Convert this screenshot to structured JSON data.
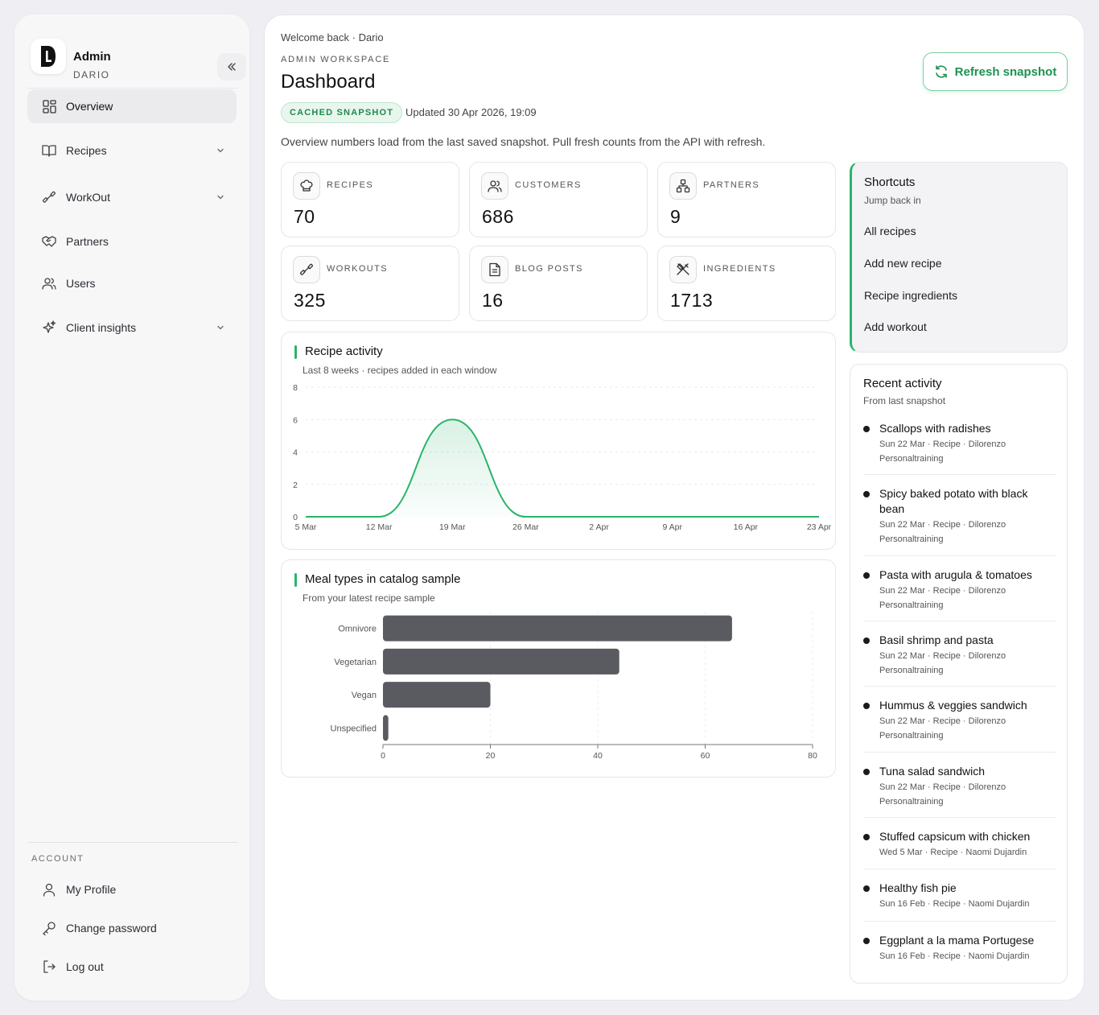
{
  "sidebar": {
    "brand": {
      "name": "Admin",
      "sub": "DARIO"
    },
    "nav": [
      {
        "label": "Overview",
        "icon": "grid-icon",
        "active": true
      },
      {
        "label": "Recipes",
        "icon": "book-icon",
        "chevron": true
      },
      {
        "label": "WorkOut",
        "icon": "dumbbell-icon",
        "chevron": true
      },
      {
        "label": "Partners",
        "icon": "handshake-icon"
      },
      {
        "label": "Users",
        "icon": "users-icon"
      },
      {
        "label": "Client insights",
        "icon": "sparkles-icon",
        "chevron": true
      }
    ],
    "account_label": "ACCOUNT",
    "account": [
      {
        "label": "My Profile",
        "icon": "user-icon"
      },
      {
        "label": "Change password",
        "icon": "key-icon"
      },
      {
        "label": "Log out",
        "icon": "logout-icon"
      }
    ]
  },
  "header": {
    "welcome": "Welcome back · Dario",
    "workspace": "ADMIN WORKSPACE",
    "title": "Dashboard",
    "badge": "CACHED SNAPSHOT",
    "updated": "Updated 30 Apr 2026, 19:09",
    "intro": "Overview numbers load from the last saved snapshot. Pull fresh counts from the API with refresh.",
    "refresh_label": "Refresh snapshot"
  },
  "stats": [
    {
      "label": "RECIPES",
      "value": "70",
      "icon": "chef-hat-icon"
    },
    {
      "label": "CUSTOMERS",
      "value": "686",
      "icon": "users-icon"
    },
    {
      "label": "PARTNERS",
      "value": "9",
      "icon": "network-icon"
    },
    {
      "label": "WORKOUTS",
      "value": "325",
      "icon": "dumbbell-icon"
    },
    {
      "label": "BLOG POSTS",
      "value": "16",
      "icon": "document-icon"
    },
    {
      "label": "INGREDIENTS",
      "value": "1713",
      "icon": "utensils-crossed-icon"
    }
  ],
  "recipe_activity": {
    "title": "Recipe activity",
    "subtitle": "Last 8 weeks · recipes added in each window"
  },
  "meal_types": {
    "title": "Meal types in catalog sample",
    "subtitle": "From your latest recipe sample"
  },
  "chart_data": [
    {
      "type": "area",
      "title": "Recipe activity",
      "x": [
        "5 Mar",
        "12 Mar",
        "19 Mar",
        "26 Mar",
        "2 Apr",
        "9 Apr",
        "16 Apr",
        "23 Apr"
      ],
      "values": [
        0,
        0,
        6,
        0,
        0,
        0,
        0,
        0
      ],
      "ylim": [
        0,
        8
      ],
      "yticks": [
        0,
        2,
        4,
        6,
        8
      ],
      "grid": true,
      "color": "#2bb36b"
    },
    {
      "type": "bar",
      "orientation": "horizontal",
      "title": "Meal types in catalog sample",
      "categories": [
        "Omnivore",
        "Vegetarian",
        "Vegan",
        "Unspecified"
      ],
      "values": [
        65,
        44,
        20,
        1
      ],
      "xlim": [
        0,
        80
      ],
      "xticks": [
        0,
        20,
        40,
        60,
        80
      ],
      "grid": true,
      "color": "#5a5a61"
    }
  ],
  "shortcuts": {
    "title": "Shortcuts",
    "subtitle": "Jump back in",
    "links": [
      "All recipes",
      "Add new recipe",
      "Recipe ingredients",
      "Add workout"
    ]
  },
  "recent": {
    "title": "Recent activity",
    "subtitle": "From last snapshot",
    "items": [
      {
        "title": "Scallops with radishes",
        "meta": "Sun 22 Mar · Recipe · Dilorenzo Personaltraining"
      },
      {
        "title": "Spicy baked potato with black bean",
        "meta": "Sun 22 Mar · Recipe · Dilorenzo Personaltraining"
      },
      {
        "title": "Pasta with arugula & tomatoes",
        "meta": "Sun 22 Mar · Recipe · Dilorenzo Personaltraining"
      },
      {
        "title": "Basil shrimp and pasta",
        "meta": "Sun 22 Mar · Recipe · Dilorenzo Personaltraining"
      },
      {
        "title": "Hummus & veggies sandwich",
        "meta": "Sun 22 Mar · Recipe · Dilorenzo Personaltraining"
      },
      {
        "title": "Tuna salad sandwich",
        "meta": "Sun 22 Mar · Recipe · Dilorenzo Personaltraining"
      },
      {
        "title": "Stuffed capsicum with chicken",
        "meta": "Wed 5 Mar · Recipe · Naomi Dujardin"
      },
      {
        "title": "Healthy fish pie",
        "meta": "Sun 16 Feb · Recipe · Naomi Dujardin"
      },
      {
        "title": "Eggplant a la mama Portugese",
        "meta": "Sun 16 Feb · Recipe · Naomi Dujardin"
      }
    ]
  }
}
